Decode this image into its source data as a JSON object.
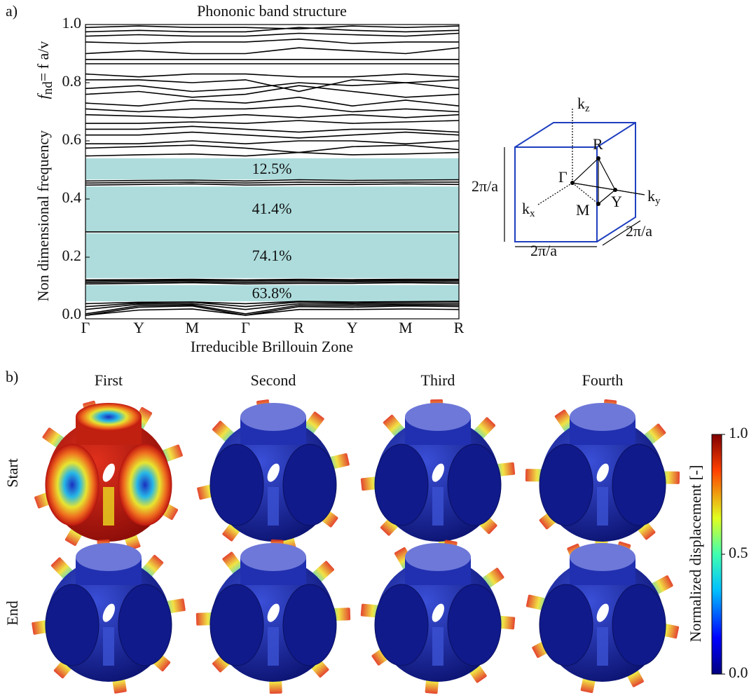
{
  "panel_a": {
    "label": "a)"
  },
  "chart_data": {
    "type": "line",
    "title": "Phononic band structure",
    "x_label": "Irreducible Brillouin Zone",
    "y_label": "Non dimensional frequency",
    "y_label_formula": {
      "base": "f",
      "sub": "nd",
      "rest": "= f a/v"
    },
    "categories": [
      "Γ",
      "Y",
      "M",
      "Γ",
      "R",
      "Y",
      "M",
      "R"
    ],
    "ylim": [
      -0.012,
      1.0
    ],
    "yticks": [
      {
        "value": 0,
        "label": "0.0"
      },
      0.2,
      0.4,
      0.6,
      0.8,
      {
        "value": 1,
        "label": "1.0"
      }
    ],
    "line_color": "#000000",
    "gap_color": "#aedcdc",
    "band_gaps": [
      {
        "from": 0.467,
        "to": 0.54,
        "label": "12.5%"
      },
      {
        "from": 0.289,
        "to": 0.443,
        "label": "41.4%"
      },
      {
        "from": 0.128,
        "to": 0.282,
        "label": "74.1%"
      },
      {
        "from": 0.048,
        "to": 0.104,
        "label": "63.8%"
      }
    ],
    "series": [
      {
        "values": [
          0,
          0.018,
          0.022,
          0,
          0.02,
          0.02,
          0.022,
          0.02
        ]
      },
      {
        "values": [
          0,
          0.028,
          0.032,
          0,
          0.03,
          0.028,
          0.032,
          0.03
        ]
      },
      {
        "values": [
          0.005,
          0.033,
          0.036,
          0.005,
          0.035,
          0.033,
          0.036,
          0.035
        ]
      },
      {
        "values": [
          0.02,
          0.038,
          0.04,
          0.02,
          0.04,
          0.038,
          0.04,
          0.04
        ]
      },
      {
        "values": [
          0.03,
          0.042,
          0.045,
          0.03,
          0.046,
          0.042,
          0.045,
          0.046
        ]
      },
      {
        "values": [
          0.04,
          0.045,
          0.046,
          0.04,
          0.048,
          0.046,
          0.047,
          0.048
        ]
      },
      {
        "values": [
          0.108,
          0.11,
          0.112,
          0.108,
          0.11,
          0.11,
          0.112,
          0.11
        ]
      },
      {
        "values": [
          0.113,
          0.115,
          0.116,
          0.113,
          0.115,
          0.115,
          0.116,
          0.115
        ]
      },
      {
        "values": [
          0.118,
          0.119,
          0.12,
          0.118,
          0.12,
          0.119,
          0.12,
          0.12
        ]
      },
      {
        "values": [
          0.122,
          0.123,
          0.124,
          0.122,
          0.124,
          0.123,
          0.124,
          0.124
        ]
      },
      {
        "values": [
          0.287,
          0.287,
          0.287,
          0.287,
          0.287,
          0.287,
          0.287,
          0.287
        ]
      },
      {
        "values": [
          0.448,
          0.45,
          0.452,
          0.448,
          0.45,
          0.45,
          0.452,
          0.45
        ]
      },
      {
        "values": [
          0.455,
          0.457,
          0.458,
          0.455,
          0.458,
          0.457,
          0.458,
          0.458
        ]
      },
      {
        "values": [
          0.462,
          0.464,
          0.465,
          0.462,
          0.466,
          0.464,
          0.465,
          0.466
        ]
      },
      {
        "values": [
          0.548,
          0.552,
          0.555,
          0.548,
          0.56,
          0.552,
          0.555,
          0.56
        ]
      },
      {
        "values": [
          0.575,
          0.58,
          0.585,
          0.575,
          0.56,
          0.58,
          0.585,
          0.57
        ]
      },
      {
        "values": [
          0.59,
          0.59,
          0.6,
          0.59,
          0.6,
          0.6,
          0.59,
          0.6
        ]
      },
      {
        "values": [
          0.62,
          0.62,
          0.63,
          0.62,
          0.61,
          0.62,
          0.63,
          0.62
        ]
      },
      {
        "values": [
          0.64,
          0.64,
          0.65,
          0.64,
          0.63,
          0.64,
          0.64,
          0.63
        ]
      },
      {
        "values": [
          0.66,
          0.66,
          0.665,
          0.66,
          0.67,
          0.66,
          0.665,
          0.67
        ]
      },
      {
        "values": [
          0.69,
          0.685,
          0.68,
          0.69,
          0.68,
          0.69,
          0.68,
          0.69
        ]
      },
      {
        "values": [
          0.71,
          0.7,
          0.71,
          0.71,
          0.72,
          0.7,
          0.71,
          0.7
        ]
      },
      {
        "values": [
          0.73,
          0.72,
          0.74,
          0.73,
          0.75,
          0.72,
          0.74,
          0.72
        ]
      },
      {
        "values": [
          0.76,
          0.77,
          0.75,
          0.76,
          0.79,
          0.77,
          0.75,
          0.76
        ]
      },
      {
        "values": [
          0.78,
          0.79,
          0.77,
          0.78,
          0.8,
          0.79,
          0.8,
          0.78
        ]
      },
      {
        "values": [
          0.81,
          0.81,
          0.8,
          0.81,
          0.77,
          0.81,
          0.8,
          0.81
        ]
      },
      {
        "values": [
          0.83,
          0.82,
          0.83,
          0.83,
          0.82,
          0.82,
          0.83,
          0.82
        ]
      },
      {
        "values": [
          0.865,
          0.865,
          0.865,
          0.865,
          0.865,
          0.865,
          0.865,
          0.865
        ]
      },
      {
        "values": [
          0.88,
          0.88,
          0.88,
          0.88,
          0.88,
          0.88,
          0.88,
          0.88
        ]
      },
      {
        "values": [
          0.9,
          0.91,
          0.9,
          0.9,
          0.92,
          0.91,
          0.9,
          0.92
        ]
      },
      {
        "values": [
          0.94,
          0.935,
          0.94,
          0.94,
          0.95,
          0.935,
          0.94,
          0.94
        ]
      },
      {
        "values": [
          0.96,
          0.965,
          0.96,
          0.96,
          0.97,
          0.965,
          0.96,
          0.97
        ]
      },
      {
        "values": [
          0.975,
          0.98,
          0.975,
          0.975,
          0.99,
          0.98,
          0.975,
          0.98
        ]
      },
      {
        "values": [
          0.99,
          0.995,
          0.99,
          0.99,
          0.985,
          0.995,
          0.99,
          0.995
        ]
      }
    ]
  },
  "brillouin_zone": {
    "axes": [
      {
        "base": "k",
        "sub": "z"
      },
      {
        "base": "k",
        "sub": "y"
      },
      {
        "base": "k",
        "sub": "x"
      }
    ],
    "points": [
      "R",
      "Γ",
      "Y",
      "M"
    ],
    "dimensions": [
      "2π/a",
      "2π/a",
      "2π/a"
    ]
  },
  "mode_shapes": {
    "label": "b)",
    "columns": [
      "First",
      "Second",
      "Third",
      "Fourth"
    ],
    "rows": [
      "Start",
      "End"
    ],
    "colorbar": {
      "label": "Normalized displacement [-]",
      "range": [
        0,
        1
      ],
      "ticks": [
        {
          "value": 1,
          "label": "1.0"
        },
        0.5,
        {
          "value": 0,
          "label": "0.0"
        }
      ]
    }
  }
}
